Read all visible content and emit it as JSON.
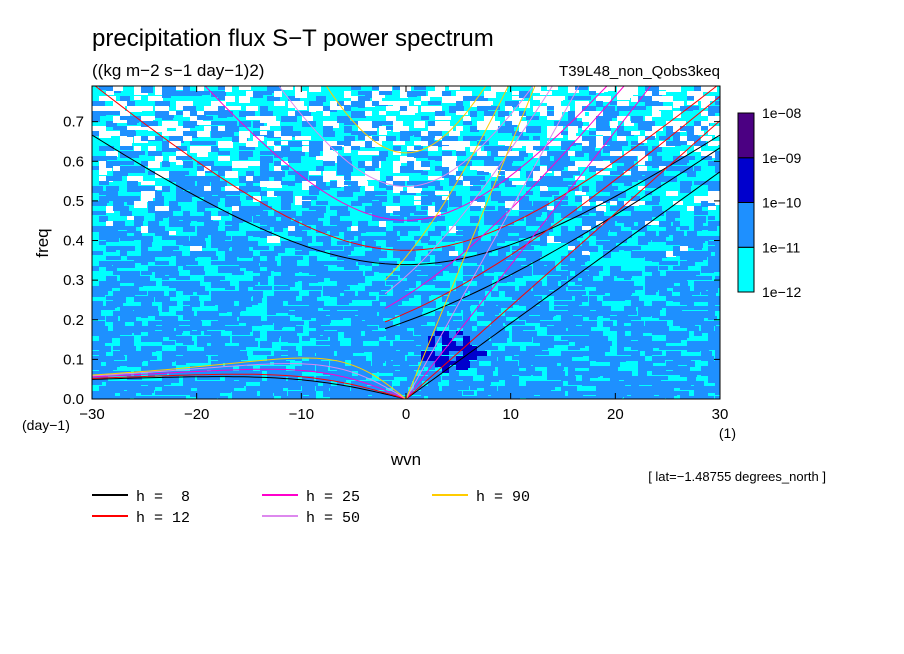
{
  "chart_data": {
    "type": "heatmap",
    "title": "precipitation flux S−T power spectrum",
    "subtitle": "((kg m−2 s−1 day−1)2)",
    "run_label": "T39L48_non_Qobs3keq",
    "xlabel": "wvn",
    "ylabel": "freq",
    "x_unit": "(1)",
    "y_unit": "(day−1)",
    "xlim": [
      -30,
      30
    ],
    "ylim": [
      0,
      0.79
    ],
    "x_ticks": [
      "−30",
      "−20",
      "−10",
      "0",
      "10",
      "20",
      "30"
    ],
    "y_ticks": [
      "0.0",
      "0.1",
      "0.2",
      "0.3",
      "0.4",
      "0.5",
      "0.6",
      "0.7"
    ],
    "colorbar": {
      "levels": [
        "1e−12",
        "1e−11",
        "1e−10",
        "1e−09",
        "1e−08"
      ],
      "colors": [
        "#ffffff",
        "#00ffff",
        "#1e90ff",
        "#0000cd",
        "#4b0082"
      ]
    },
    "annotation": "[ lat=−1.48755 degrees_north ]",
    "dispersion_curves": [
      {
        "label": "h =  8",
        "h": 8,
        "color": "#000000"
      },
      {
        "label": "h = 12",
        "h": 12,
        "color": "#ff0000"
      },
      {
        "label": "h = 25",
        "h": 25,
        "color": "#ff00cc"
      },
      {
        "label": "h = 50",
        "h": 50,
        "color": "#dd88ee"
      },
      {
        "label": "h = 90",
        "h": 90,
        "color": "#ffcc00"
      }
    ]
  }
}
